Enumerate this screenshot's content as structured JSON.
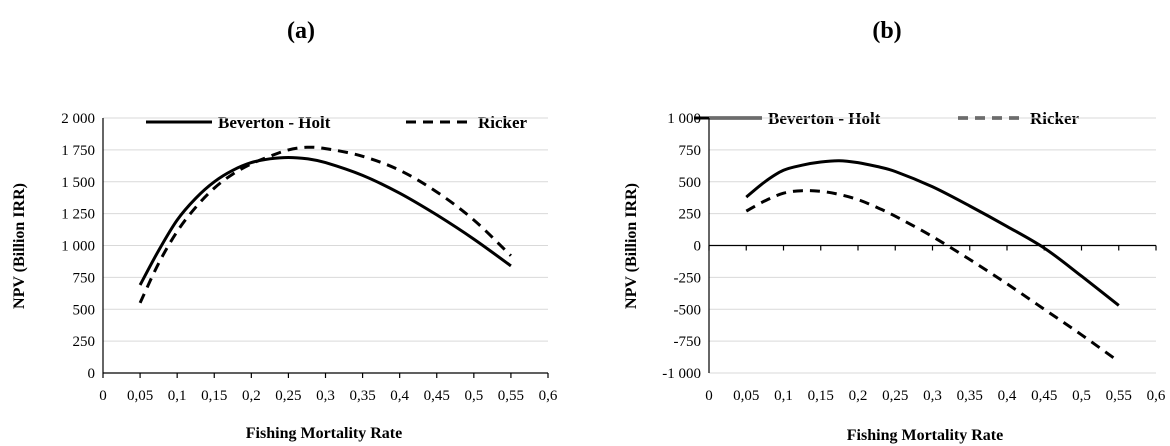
{
  "chart_data": [
    {
      "type": "line",
      "title": "(a)",
      "xlabel": "Fishing Mortality Rate",
      "ylabel": "NPV (Billion IRR)",
      "xlim": [
        0,
        0.6
      ],
      "ylim": [
        0,
        2000
      ],
      "x_tick_labels": [
        "0",
        "0,05",
        "0,1",
        "0,15",
        "0,2",
        "0,25",
        "0,3",
        "0,35",
        "0,4",
        "0,45",
        "0,5",
        "0,55",
        "0,6"
      ],
      "y_tick_labels": [
        "0",
        "250",
        "500",
        "750",
        "1 000",
        "1 250",
        "1 500",
        "1 750",
        "2 000"
      ],
      "grid": true,
      "legend_position": "top",
      "x": [
        0.05,
        0.075,
        0.1,
        0.125,
        0.15,
        0.175,
        0.2,
        0.225,
        0.25,
        0.275,
        0.3,
        0.35,
        0.4,
        0.45,
        0.5,
        0.55
      ],
      "series": [
        {
          "name": "Beverton - Holt",
          "style": "solid",
          "values": [
            690,
            960,
            1200,
            1370,
            1500,
            1590,
            1650,
            1680,
            1690,
            1680,
            1650,
            1550,
            1410,
            1240,
            1050,
            840
          ]
        },
        {
          "name": "Ricker",
          "style": "dashed",
          "values": [
            550,
            860,
            1110,
            1300,
            1450,
            1560,
            1640,
            1700,
            1750,
            1770,
            1760,
            1700,
            1590,
            1420,
            1200,
            920
          ]
        }
      ]
    },
    {
      "type": "line",
      "title": "(b)",
      "xlabel": "Fishing Mortality Rate",
      "ylabel": "NPV (Billion IRR)",
      "xlim": [
        0,
        0.6
      ],
      "ylim": [
        -1000,
        1000
      ],
      "x_tick_labels": [
        "0",
        "0,05",
        "0,1",
        "0,15",
        "0,2",
        "0,25",
        "0,3",
        "0,35",
        "0,4",
        "0,45",
        "0,5",
        "0,55",
        "0,6"
      ],
      "y_tick_labels": [
        "-1 000",
        "-750",
        "-500",
        "-250",
        "0",
        "250",
        "500",
        "750",
        "1 000"
      ],
      "grid": true,
      "legend_position": "top",
      "x": [
        0.05,
        0.075,
        0.1,
        0.125,
        0.15,
        0.175,
        0.2,
        0.225,
        0.25,
        0.3,
        0.35,
        0.4,
        0.45,
        0.5,
        0.55
      ],
      "series": [
        {
          "name": "Beverton - Holt",
          "style": "solid",
          "values": [
            380,
            500,
            590,
            630,
            655,
            665,
            650,
            620,
            580,
            460,
            310,
            150,
            -20,
            -240,
            -470
          ]
        },
        {
          "name": "Ricker",
          "style": "dashed",
          "values": [
            270,
            350,
            410,
            430,
            425,
            400,
            360,
            300,
            230,
            70,
            -110,
            -300,
            -500,
            -700,
            -910
          ]
        }
      ]
    }
  ]
}
